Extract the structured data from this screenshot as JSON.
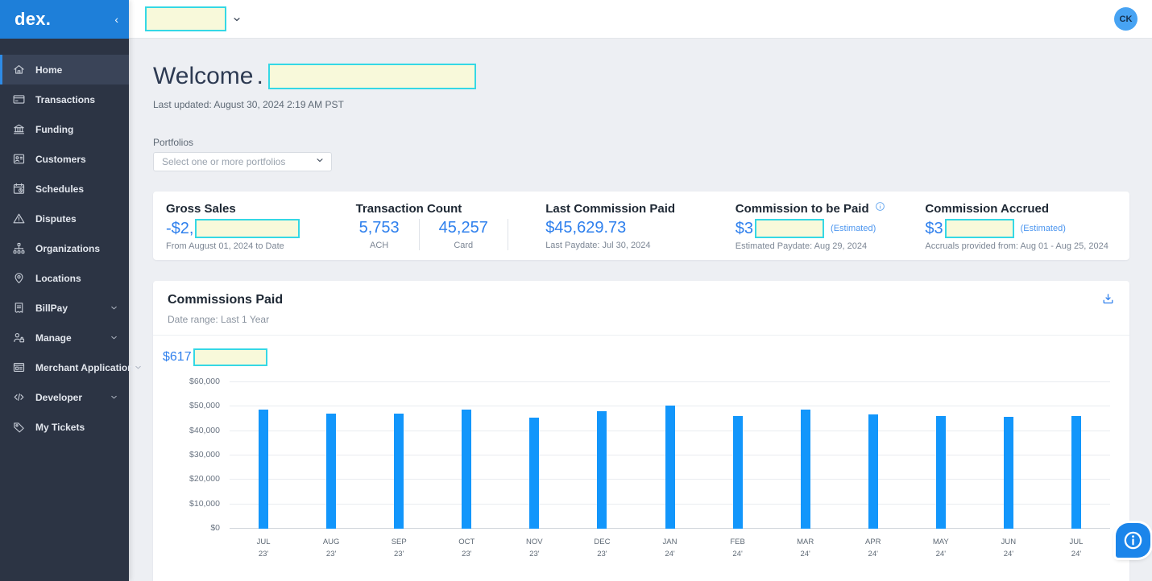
{
  "colors": {
    "brand_blue": "#1e7fd9",
    "sidebar_bg": "#2c3444",
    "accent_blue": "#2f80ed",
    "bar_blue": "#1296fb",
    "redaction_fill": "#f8f9da",
    "redaction_border": "#35d8e5",
    "avatar_bg": "#47a3f3"
  },
  "sidebar": {
    "logo": "dex.",
    "collapse_icon": "chevron-left",
    "items": [
      {
        "label": "Home",
        "icon": "home",
        "active": true,
        "expandable": false
      },
      {
        "label": "Transactions",
        "icon": "card",
        "active": false,
        "expandable": false
      },
      {
        "label": "Funding",
        "icon": "bank",
        "active": false,
        "expandable": false
      },
      {
        "label": "Customers",
        "icon": "id-card",
        "active": false,
        "expandable": false
      },
      {
        "label": "Schedules",
        "icon": "calendar",
        "active": false,
        "expandable": false
      },
      {
        "label": "Disputes",
        "icon": "warning",
        "active": false,
        "expandable": false
      },
      {
        "label": "Organizations",
        "icon": "org",
        "active": false,
        "expandable": false
      },
      {
        "label": "Locations",
        "icon": "pin",
        "active": false,
        "expandable": false
      },
      {
        "label": "BillPay",
        "icon": "billpay",
        "active": false,
        "expandable": true
      },
      {
        "label": "Manage",
        "icon": "manage",
        "active": false,
        "expandable": true
      },
      {
        "label": "Merchant Application",
        "icon": "application",
        "active": false,
        "expandable": true
      },
      {
        "label": "Developer",
        "icon": "code",
        "active": false,
        "expandable": true
      },
      {
        "label": "My Tickets",
        "icon": "ticket",
        "active": false,
        "expandable": false
      }
    ]
  },
  "topbar": {
    "account_selector_redacted": "",
    "avatar_initials": "CK"
  },
  "page": {
    "greeting": "Welcome",
    "greeting_punct": ".",
    "last_updated": "Last updated: August 30, 2024 2:19 AM PST",
    "portfolios_label": "Portfolios",
    "portfolios_placeholder": "Select one or more portfolios"
  },
  "stats": {
    "gross_sales": {
      "label": "Gross Sales",
      "value_prefix": "-$2,",
      "value_redacted": true,
      "subtext": "From August 01, 2024 to Date"
    },
    "transaction_count": {
      "label": "Transaction Count",
      "items": [
        {
          "value": "5,753",
          "unit": "ACH"
        },
        {
          "value": "45,257",
          "unit": "Card"
        }
      ]
    },
    "last_commission_paid": {
      "label": "Last Commission Paid",
      "value": "$45,629.73",
      "subtext": "Last Paydate: Jul 30, 2024"
    },
    "commission_to_be_paid": {
      "label": "Commission to be Paid",
      "value_prefix": "$3",
      "value_redacted": true,
      "estimated_tag": "(Estimated)",
      "subtext": "Estimated Paydate: Aug 29, 2024"
    },
    "commission_accrued": {
      "label": "Commission Accrued",
      "value_prefix": "$3",
      "value_redacted": true,
      "estimated_tag": "(Estimated)",
      "subtext": "Accruals provided from: Aug 01 - Aug 25, 2024"
    }
  },
  "chart_card": {
    "title": "Commissions Paid",
    "date_range": "Date range: Last 1 Year",
    "total_prefix": "$617",
    "total_redacted": true
  },
  "chart_data": {
    "type": "bar",
    "title": "Commissions Paid",
    "categories": [
      "JUL 23'",
      "AUG 23'",
      "SEP 23'",
      "OCT 23'",
      "NOV 23'",
      "DEC 23'",
      "JAN 24'",
      "FEB 24'",
      "MAR 24'",
      "APR 24'",
      "MAY 24'",
      "JUN 24'",
      "JUL 24'"
    ],
    "values": [
      48700,
      47300,
      47300,
      48800,
      45400,
      48300,
      50400,
      46200,
      48800,
      46900,
      46300,
      45900,
      46200
    ],
    "xlabel": "",
    "ylabel": "",
    "ylim": [
      0,
      60000
    ],
    "yticks": [
      "$0",
      "$10,000",
      "$20,000",
      "$30,000",
      "$40,000",
      "$50,000",
      "$60,000"
    ],
    "grid": true,
    "legend": false,
    "bar_color": "#1296fb"
  }
}
